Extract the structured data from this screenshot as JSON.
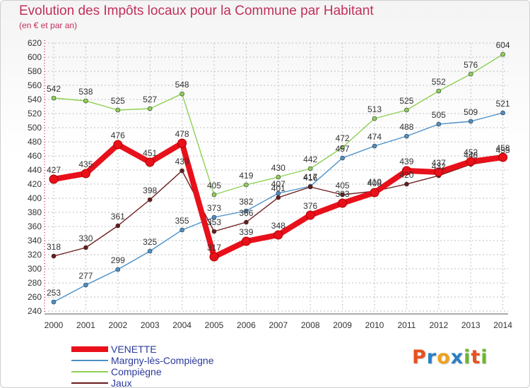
{
  "header": {
    "title": "Evolution des Impôts locaux pour la Commune par Habitant",
    "subtitle": "(en € et par an)"
  },
  "colors": {
    "title": "#c0305a",
    "grid": "#bfbfbf",
    "axis": "#555555"
  },
  "logo": {
    "letters": [
      "P",
      "r",
      "o",
      "x",
      "i",
      "t",
      "i"
    ],
    "colors": [
      "#e8501e",
      "#2a7fc4",
      "#f0a21c",
      "#2a7fc4",
      "#6fb52c",
      "#e8501e",
      "#6fb52c"
    ]
  },
  "chart_data": {
    "type": "line",
    "title": "Evolution des Impôts locaux pour la Commune par Habitant",
    "subtitle": "(en € et par an)",
    "x": [
      2000,
      2001,
      2002,
      2003,
      2004,
      2005,
      2006,
      2007,
      2008,
      2009,
      2010,
      2011,
      2012,
      2013,
      2014
    ],
    "ylim": [
      240,
      620
    ],
    "ytick_step": 20,
    "grid": true,
    "legend_position": "bottom-left",
    "series": [
      {
        "name": "VENETTE",
        "color": "#e8101a",
        "bold": true,
        "values": [
          427,
          435,
          476,
          451,
          478,
          317,
          339,
          348,
          376,
          393,
          408,
          439,
          437,
          452,
          458
        ],
        "labels": [
          "427",
          "435",
          "476",
          "451",
          "478",
          "317",
          "339",
          "348",
          "376",
          "393",
          "408",
          "439",
          "437",
          "452",
          "458"
        ]
      },
      {
        "name": "Margny-lès-Compiègne",
        "color": "#4a90c8",
        "bold": false,
        "values": [
          253,
          277,
          299,
          325,
          355,
          373,
          382,
          407,
          417,
          457,
          474,
          488,
          505,
          509,
          521
        ],
        "labels": [
          "253",
          "277",
          "299",
          "325",
          "355",
          "373",
          "382",
          "407",
          "417",
          "457",
          "474",
          "488",
          "505",
          "509",
          "521"
        ]
      },
      {
        "name": "Compiègne",
        "color": "#8ed155",
        "bold": false,
        "values": [
          542,
          538,
          525,
          527,
          548,
          405,
          419,
          430,
          442,
          472,
          513,
          525,
          552,
          576,
          604
        ],
        "labels": [
          "542",
          "538",
          "525",
          "527",
          "548",
          "405",
          "419",
          "430",
          "442",
          "472",
          "513",
          "525",
          "552",
          "576",
          "604"
        ]
      },
      {
        "name": "Jaux",
        "color": "#6b1a1a",
        "bold": false,
        "values": [
          318,
          330,
          361,
          398,
          439,
          353,
          366,
          401,
          416,
          405,
          410,
          420,
          432,
          448,
          455
        ],
        "labels": [
          "318",
          "330",
          "361",
          "398",
          "439",
          "353",
          "366",
          "401",
          "416",
          "405",
          "410",
          "420",
          "432",
          "448",
          "455"
        ]
      }
    ]
  }
}
